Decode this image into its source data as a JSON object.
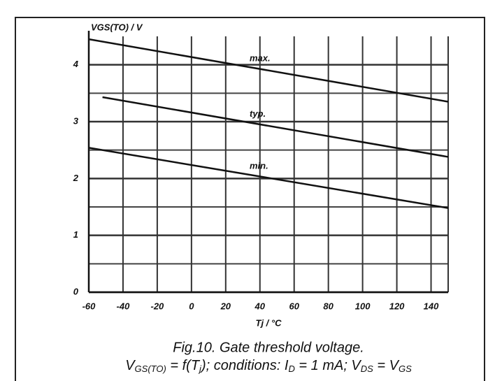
{
  "chart_data": {
    "type": "line",
    "ylabel": "VGS(TO) / V",
    "xlabel": "Tj / °C",
    "caption_line1": "Fig.10.   Gate threshold voltage.",
    "caption_line2": [
      "V",
      "GS(TO)",
      " = f(T",
      "j",
      "); conditions: I",
      "D",
      " = 1 mA; V",
      "DS",
      " = V",
      "GS"
    ],
    "xlim": [
      -60,
      150
    ],
    "xticks": [
      -60,
      -40,
      -20,
      0,
      20,
      40,
      60,
      80,
      100,
      120,
      140
    ],
    "ylim": [
      0,
      4.5
    ],
    "yticks": [
      0,
      1,
      2,
      3,
      4
    ],
    "ygrid_minor": [
      0.5,
      1.5,
      2.5,
      3.5
    ],
    "grid": true,
    "series": [
      {
        "name": "max.",
        "color": "#111111",
        "x": [
          -60,
          150
        ],
        "values": [
          4.45,
          3.35
        ]
      },
      {
        "name": "typ.",
        "color": "#111111",
        "x": [
          -52,
          150
        ],
        "values": [
          3.43,
          2.38
        ]
      },
      {
        "name": "min.",
        "color": "#111111",
        "x": [
          -60,
          150
        ],
        "values": [
          2.54,
          1.48
        ]
      }
    ]
  }
}
